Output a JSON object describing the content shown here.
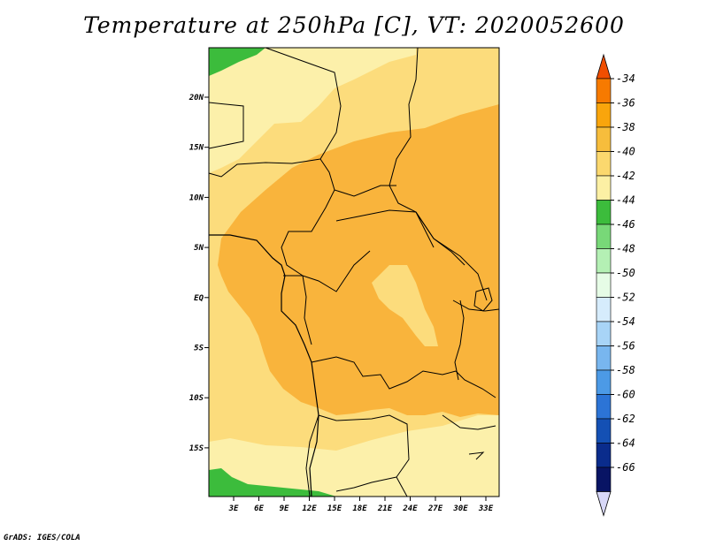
{
  "title": "Temperature at 250hPa [C], VT: 2020052600",
  "credit": "GrADS: IGES/COLA",
  "map": {
    "lon_labels": [
      "3E",
      "6E",
      "9E",
      "12E",
      "15E",
      "18E",
      "21E",
      "24E",
      "27E",
      "30E",
      "33E"
    ],
    "lat_labels": [
      "20N",
      "15N",
      "10N",
      "5N",
      "EQ",
      "5S",
      "10S",
      "15S"
    ]
  },
  "colorbar": {
    "labels": [
      "-34",
      "-36",
      "-38",
      "-40",
      "-42",
      "-44",
      "-46",
      "-48",
      "-50",
      "-52",
      "-54",
      "-56",
      "-58",
      "-60",
      "-62",
      "-64",
      "-66"
    ],
    "colors": [
      "#f04e00",
      "#f77a00",
      "#f9a50c",
      "#f7bd3c",
      "#fbd86e",
      "#fcf0a4",
      "#3cbc3c",
      "#78d878",
      "#b4f0b4",
      "#e6fce6",
      "#d6ecfc",
      "#a8d4f7",
      "#78b6ef",
      "#4c9ae6",
      "#2c74d6",
      "#1450b4",
      "#0a2c8c",
      "#081464",
      "#d8d8f8"
    ]
  }
}
